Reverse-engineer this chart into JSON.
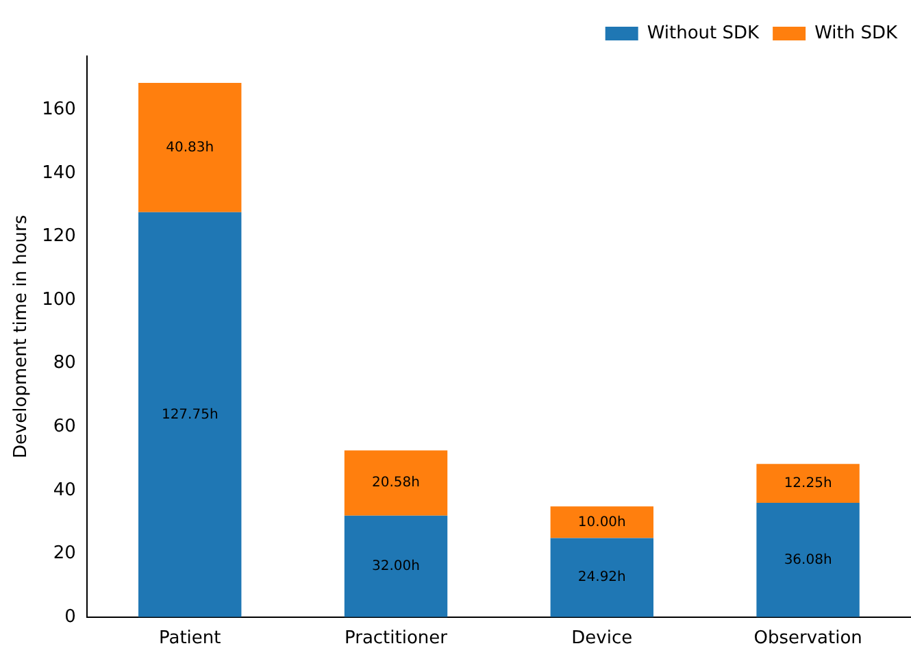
{
  "chart_data": {
    "type": "bar",
    "stacked": true,
    "ylabel": "Development time in hours",
    "categories": [
      "Patient",
      "Practitioner",
      "Device",
      "Observation"
    ],
    "series": [
      {
        "name": "Without SDK",
        "color": "#1f77b4",
        "values": [
          127.75,
          32.0,
          24.92,
          36.08
        ],
        "value_labels": [
          "127.75h",
          "32.00h",
          "24.92h",
          "36.08h"
        ]
      },
      {
        "name": "With SDK",
        "color": "#ff7f0e",
        "values": [
          40.83,
          20.58,
          10.0,
          12.25
        ],
        "value_labels": [
          "40.83h",
          "20.58h",
          "10.00h",
          "12.25h"
        ]
      }
    ],
    "ylim": [
      0,
      177
    ],
    "yticks": [
      0,
      20,
      40,
      60,
      80,
      100,
      120,
      140,
      160
    ],
    "grid": false,
    "legend": "top right"
  }
}
